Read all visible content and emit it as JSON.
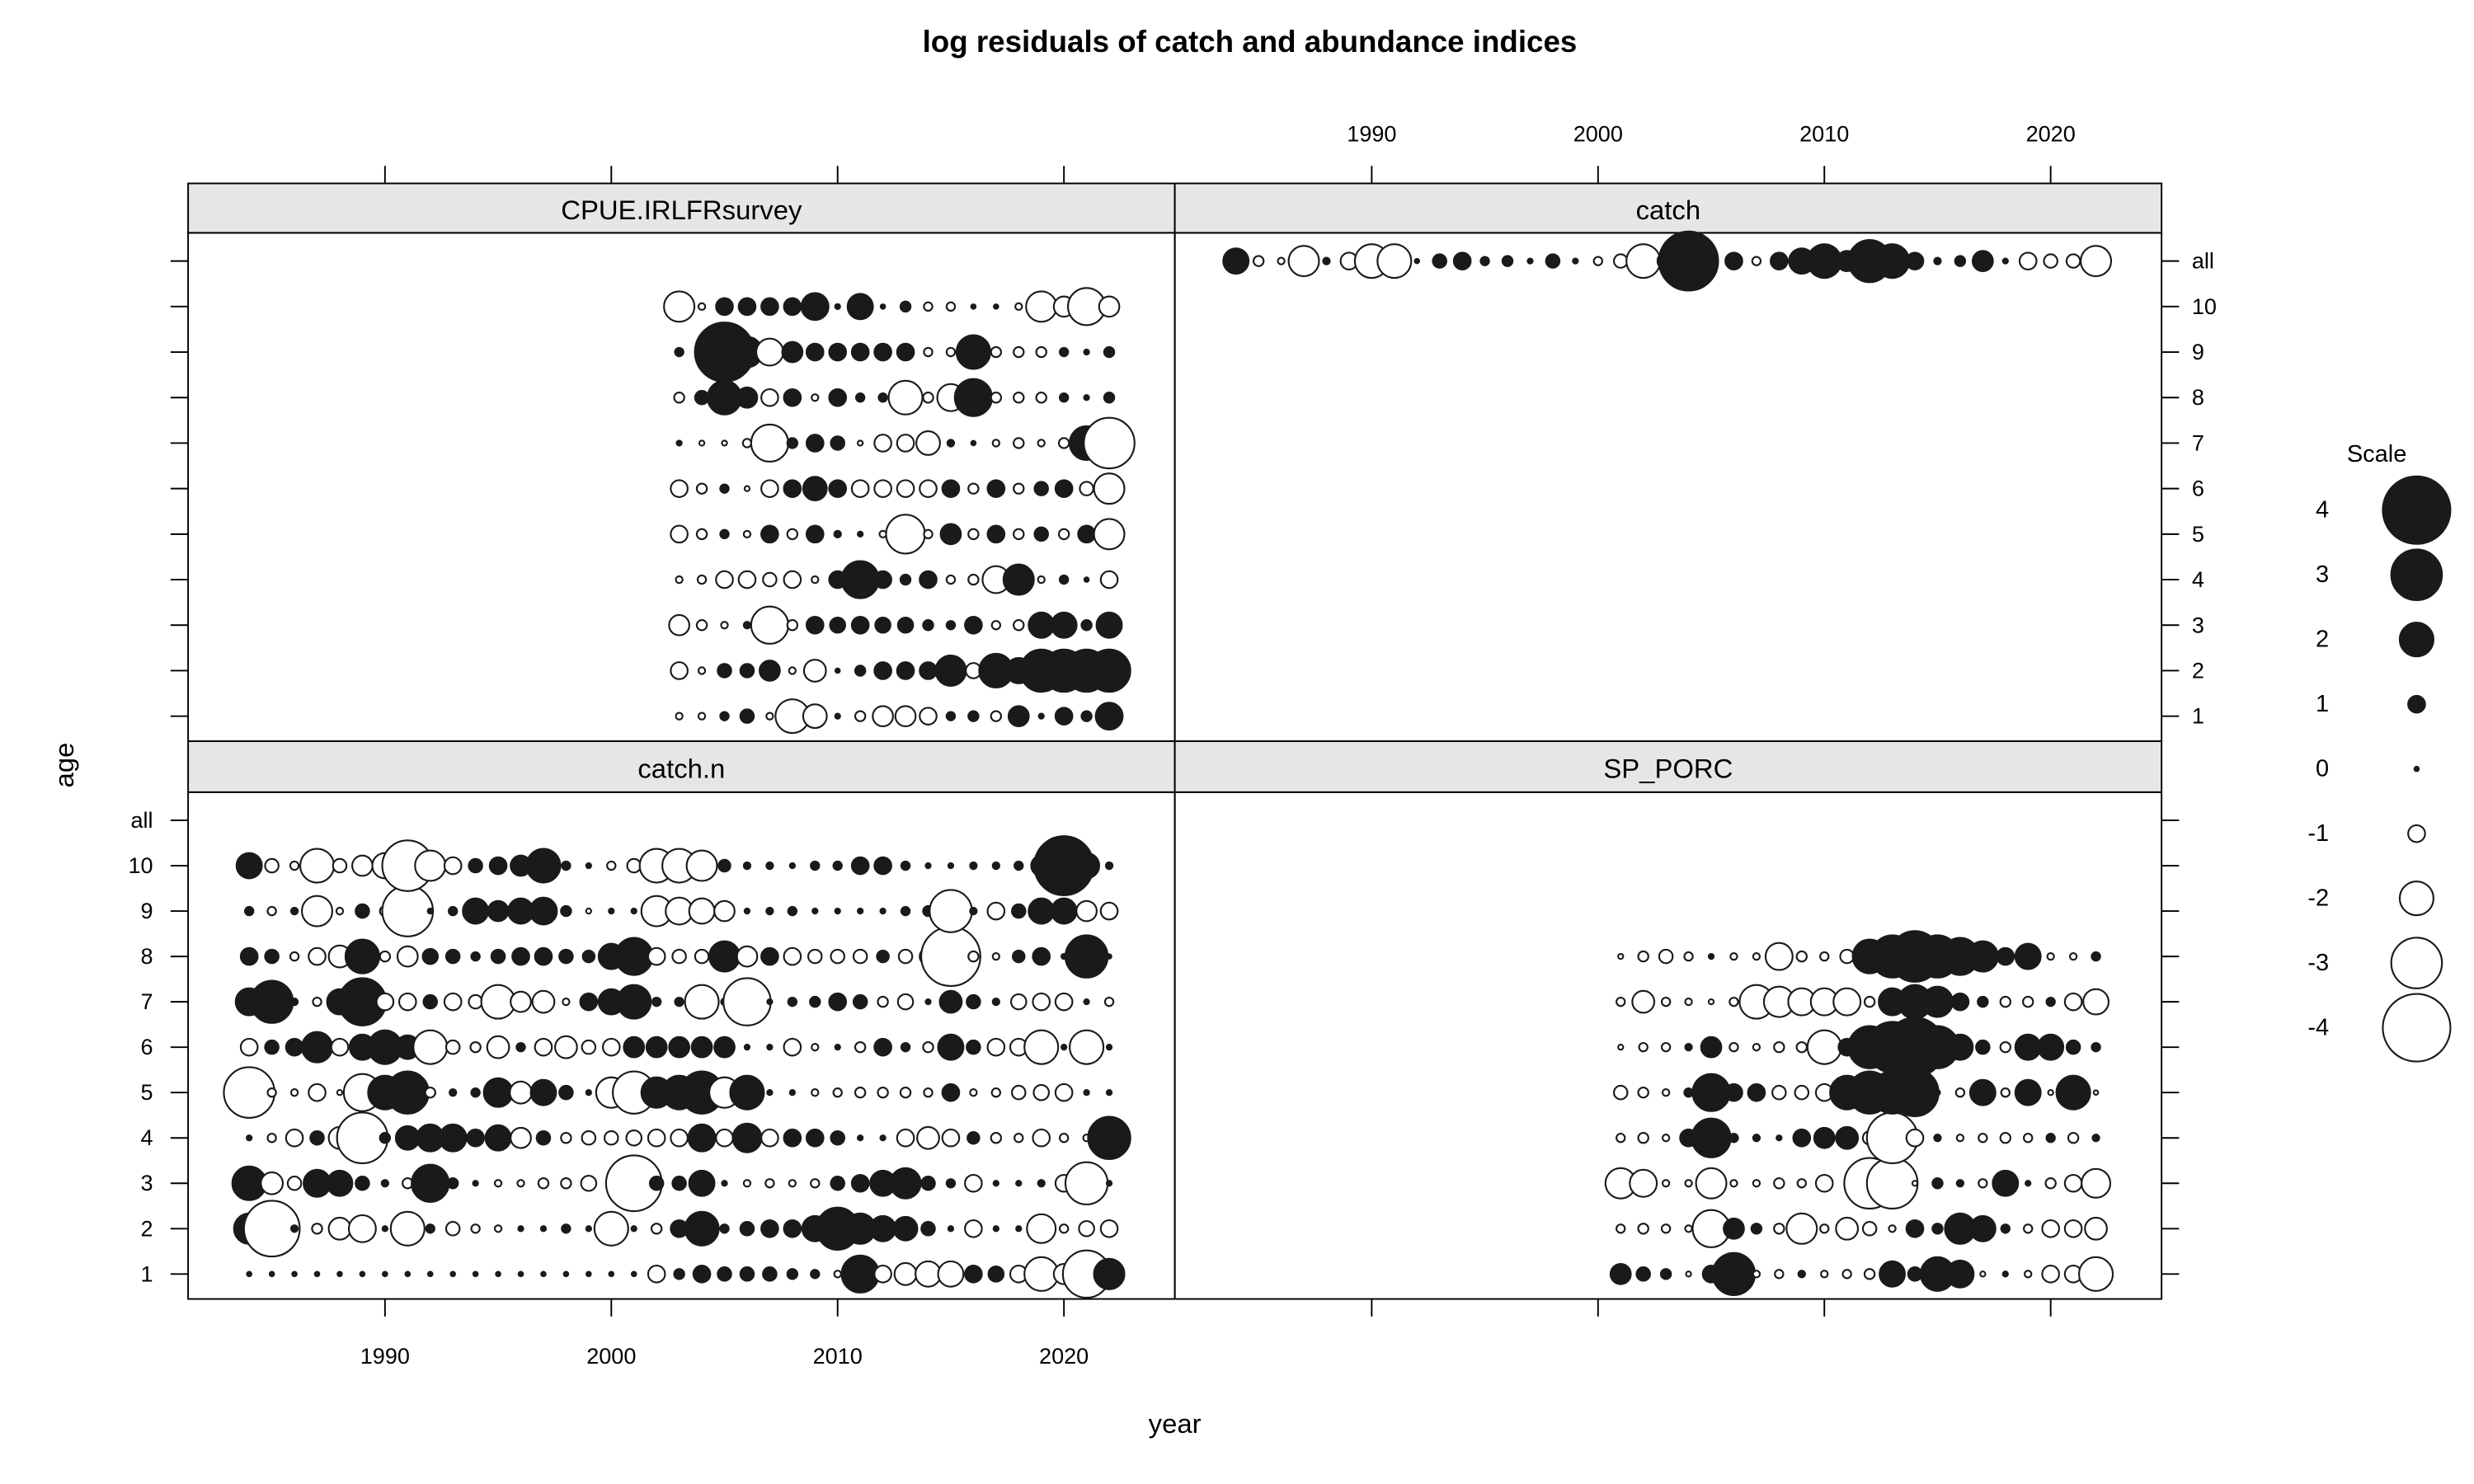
{
  "chart_data": {
    "type": "bubble",
    "title": "log residuals of catch and abundance indices",
    "xlabel": "year",
    "ylabel": "age",
    "xlim": [
      1981.3,
      2024.9
    ],
    "xticks": [
      1990,
      2000,
      2010,
      2020
    ],
    "ylim": [
      0.45,
      11.62
    ],
    "yticks": [
      1,
      2,
      3,
      4,
      5,
      6,
      7,
      8,
      9,
      10,
      {
        "value": 11,
        "label": "all"
      }
    ],
    "positive_color": "#1a1a1a",
    "negative_color": "#ffffff",
    "legend": {
      "title": "Scale",
      "values": [
        4,
        3,
        2,
        1,
        0,
        -1,
        -2,
        -3,
        -4
      ]
    },
    "panels": [
      {
        "name": "CPUE.IRLFRsurvey",
        "years": [
          2003,
          2004,
          2005,
          2006,
          2007,
          2008,
          2009,
          2010,
          2011,
          2012,
          2013,
          2014,
          2015,
          2016,
          2017,
          2018,
          2019,
          2020,
          2021,
          2022
        ],
        "ages": [
          1,
          2,
          3,
          4,
          5,
          6,
          7,
          8,
          9,
          10
        ],
        "values": [
          [
            -0.4,
            -0.4,
            0.5,
            0.8,
            -0.4,
            -2,
            -1.4,
            0.3,
            -0.6,
            -1.2,
            -1.2,
            -1,
            0.5,
            0.6,
            -0.6,
            1.2,
            0.3,
            1,
            0.6,
            1.6
          ],
          [
            -1,
            -0.4,
            0.8,
            0.8,
            1.2,
            -0.4,
            -1.3,
            0.2,
            0.6,
            1,
            1,
            1,
            1.8,
            -0.9,
            2,
            1.5,
            2.5,
            2.5,
            2.5,
            2.5
          ],
          [
            -1.2,
            -0.6,
            -0.4,
            0.4,
            -2.2,
            -0.6,
            1,
            0.9,
            1,
            0.9,
            0.9,
            0.6,
            0.5,
            1,
            -0.5,
            -0.6,
            1.5,
            1.5,
            0.6,
            1.5
          ],
          [
            -0.4,
            -0.5,
            -1,
            -1,
            -0.8,
            -1,
            -0.4,
            1,
            2.2,
            1,
            0.6,
            1,
            -0.5,
            -0.6,
            -1.6,
            1.8,
            -0.4,
            0.5,
            0.2,
            -1
          ],
          [
            -1,
            -0.6,
            0.5,
            -0.4,
            1,
            -0.6,
            1,
            0.4,
            0.3,
            -0.4,
            -2.3,
            -0.5,
            1.2,
            -0.6,
            1,
            -0.6,
            0.8,
            -0.6,
            1,
            -1.8
          ],
          [
            -1,
            -0.6,
            0.5,
            -0.3,
            -1,
            1,
            1.4,
            1,
            -1,
            -1,
            -1,
            -1,
            1,
            -0.6,
            1,
            -0.6,
            0.8,
            1,
            -0.8,
            -1.8
          ],
          [
            0.3,
            -0.3,
            -0.3,
            -0.5,
            -2.2,
            0.6,
            1,
            0.8,
            -0.3,
            -1,
            -1,
            -1.4,
            0.4,
            0.2,
            -0.4,
            -0.6,
            -0.4,
            -0.6,
            2,
            -3
          ],
          [
            -0.6,
            0.8,
            2,
            1.2,
            -1,
            1,
            -0.4,
            1,
            0.5,
            0.5,
            -2,
            -0.6,
            -1.6,
            2.2,
            -0.6,
            -0.6,
            -0.6,
            0.5,
            0.3,
            0.6
          ],
          [
            0.5,
            0.3,
            3.5,
            1.8,
            -1.6,
            1.2,
            1,
            1,
            1,
            1,
            1,
            -0.5,
            -0.5,
            2,
            -0.6,
            -0.6,
            -0.6,
            0.5,
            0.3,
            0.6
          ],
          [
            -1.8,
            -0.4,
            1,
            1,
            1,
            1,
            1.6,
            0.3,
            1.5,
            0.2,
            0.6,
            -0.5,
            -0.5,
            0.2,
            0.2,
            -0.4,
            -1.8,
            -1.2,
            -2.2,
            -1.2
          ]
        ]
      },
      {
        "name": "catch",
        "years": [
          1984,
          1985,
          1986,
          1987,
          1988,
          1989,
          1990,
          1991,
          1992,
          1993,
          1994,
          1995,
          1996,
          1997,
          1998,
          1999,
          2000,
          2001,
          2002,
          2003,
          2004,
          2005,
          2006,
          2007,
          2008,
          2009,
          2010,
          2011,
          2012,
          2013,
          2014,
          2015,
          2016,
          2017,
          2018,
          2019,
          2020,
          2021,
          2022
        ],
        "ages": [
          11
        ],
        "values": [
          [
            1.5,
            -0.6,
            -0.4,
            -1.8,
            0.4,
            -1,
            -2,
            -2,
            0.2,
            0.8,
            1,
            0.5,
            0.6,
            0.3,
            0.8,
            0.3,
            -0.5,
            -0.8,
            -2,
            -1,
            3.5,
            0.3,
            1,
            -0.5,
            1,
            1.5,
            2,
            1.2,
            2.5,
            2,
            1,
            0.4,
            0.6,
            1.2,
            0.3,
            -1,
            -0.8,
            -0.8,
            -1.8
          ]
        ]
      },
      {
        "name": "catch.n",
        "years": [
          1984,
          1985,
          1986,
          1987,
          1988,
          1989,
          1990,
          1991,
          1992,
          1993,
          1994,
          1995,
          1996,
          1997,
          1998,
          1999,
          2000,
          2001,
          2002,
          2003,
          2004,
          2005,
          2006,
          2007,
          2008,
          2009,
          2010,
          2011,
          2012,
          2013,
          2014,
          2015,
          2016,
          2017,
          2018,
          2019,
          2020,
          2021,
          2022
        ],
        "ages": [
          1,
          2,
          3,
          4,
          5,
          6,
          7,
          8,
          9,
          10
        ],
        "values": [
          [
            0.2,
            0.2,
            0.2,
            0.2,
            0.2,
            0.2,
            0.2,
            0.2,
            0.2,
            0.2,
            0.2,
            0.2,
            0.2,
            0.2,
            0.2,
            0.2,
            0.2,
            0.2,
            -1,
            0.6,
            1,
            0.8,
            0.8,
            0.8,
            0.6,
            0.5,
            -0.4,
            2.2,
            -1,
            -1.3,
            -1.5,
            -1.5,
            1,
            0.9,
            -1,
            -2,
            -1.2,
            -2.8,
            1.8
          ],
          [
            1.8,
            -3.3,
            0.4,
            -0.6,
            -1.3,
            -1.6,
            0.3,
            -2,
            0.5,
            -0.8,
            -0.5,
            -0.4,
            0.3,
            0.3,
            0.5,
            0.3,
            -2,
            0.3,
            -0.6,
            1,
            2,
            0.5,
            0.8,
            1,
            1,
            1.5,
            2.5,
            1.8,
            1.5,
            1.4,
            0.8,
            0.3,
            -1,
            0.3,
            0.3,
            -1.7,
            -0.5,
            -0.9,
            -1
          ],
          [
            2,
            -1.3,
            -0.8,
            1.6,
            1.5,
            0.8,
            0.4,
            -0.6,
            2.2,
            0.6,
            0.3,
            -0.4,
            -0.4,
            -0.6,
            -0.6,
            -0.9,
            0.3,
            -3.3,
            0.8,
            0.8,
            1.5,
            0.3,
            -0.4,
            -0.5,
            -0.4,
            -0.5,
            0.8,
            1,
            1.5,
            1.8,
            0.8,
            0.5,
            -1,
            0.3,
            0.3,
            0.4,
            -1,
            -2.5,
            0.3
          ],
          [
            0.3,
            -0.5,
            -1,
            0.8,
            -1.3,
            -3,
            0.6,
            1.4,
            1.6,
            1.6,
            1,
            1.5,
            -1.2,
            0.8,
            -0.6,
            -0.8,
            -0.8,
            -0.9,
            -1,
            -1,
            1.6,
            -1,
            1.7,
            -1,
            1,
            1,
            0.8,
            0.3,
            0.3,
            -1,
            -1.3,
            -1,
            0.7,
            -0.6,
            -0.5,
            -1,
            -0.5,
            -0.4,
            2.5
          ],
          [
            -3,
            -0.5,
            -0.4,
            -1,
            -0.3,
            -2.2,
            2,
            2.5,
            -0.6,
            0.4,
            0.5,
            1.7,
            -1.3,
            1.5,
            0.8,
            0.3,
            -1.8,
            -2.5,
            1.8,
            2,
            2.5,
            -1.8,
            2,
            0.3,
            0.3,
            -0.4,
            -0.5,
            -0.6,
            -0.6,
            -0.6,
            -0.5,
            1,
            -0.4,
            -0.5,
            -0.8,
            -0.9,
            -1,
            0.3,
            0.3
          ],
          [
            -1,
            0.8,
            1,
            1.8,
            -1,
            1.5,
            2,
            1.4,
            -2,
            -0.8,
            -0.6,
            -1.3,
            0.5,
            -1,
            -1.3,
            -0.8,
            -1,
            1.2,
            1.2,
            1.2,
            1.2,
            1.2,
            0.3,
            0.3,
            -1,
            -0.4,
            0.3,
            -0.6,
            1,
            0.5,
            -0.6,
            1.5,
            0.8,
            -1,
            -1,
            -2,
            0.3,
            -2,
            0.3
          ],
          [
            1.6,
            2.5,
            0.4,
            -0.5,
            1.5,
            2.8,
            -1,
            -1,
            0.8,
            -1,
            -0.8,
            -2,
            -1.2,
            -1.3,
            -0.4,
            1,
            1.5,
            2,
            0.5,
            0.5,
            -2,
            0.4,
            -2.8,
            0.3,
            0.5,
            0.6,
            1,
            0.8,
            -0.6,
            -0.9,
            0.3,
            1.3,
            0.8,
            0.4,
            -0.9,
            -1,
            -1,
            0.3,
            -0.5
          ],
          [
            1,
            0.8,
            -0.5,
            -1,
            -1.3,
            2,
            -0.6,
            -1.2,
            0.9,
            0.8,
            0.5,
            0.8,
            1,
            1,
            0.8,
            0.7,
            1.5,
            2.2,
            -1,
            -0.8,
            -0.8,
            1.8,
            -1.2,
            1,
            -1,
            -0.8,
            -0.8,
            -0.8,
            0.7,
            -0.8,
            -1,
            -3.5,
            -0.6,
            -0.4,
            0.7,
            1,
            0.3,
            2.5,
            0
          ],
          [
            0.5,
            -0.5,
            0.4,
            -1.8,
            -0.4,
            0.8,
            -0.6,
            -3,
            0.3,
            0.5,
            1.5,
            1.2,
            1.5,
            1.6,
            0.6,
            -0.3,
            0.3,
            0.3,
            -1.8,
            -1.6,
            -1.5,
            -1.2,
            0.3,
            0.4,
            0.5,
            0.3,
            0.3,
            0.3,
            0.3,
            0.5,
            0.6,
            -2.5,
            0.4,
            -1,
            0.8,
            1.5,
            1.5,
            -1.2,
            -1
          ],
          [
            1.5,
            -0.8,
            -0.5,
            -2,
            -0.8,
            -1.2,
            -1.5,
            -3,
            -1.8,
            -1,
            0.8,
            1,
            1.2,
            2,
            0.5,
            0.3,
            -0.5,
            -0.8,
            -2,
            -2,
            -1.8,
            0.7,
            0.4,
            0.4,
            0.3,
            0.5,
            0.5,
            1,
            1,
            0.5,
            0.3,
            0.3,
            0.4,
            0.4,
            0.5,
            1.2,
            3.5,
            1.5,
            0.4
          ]
        ]
      },
      {
        "name": "SP_PORC",
        "years": [
          2001,
          2002,
          2003,
          2004,
          2005,
          2006,
          2007,
          2008,
          2009,
          2010,
          2011,
          2012,
          2013,
          2014,
          2015,
          2016,
          2017,
          2018,
          2019,
          2020,
          2021,
          2022
        ],
        "ages": [
          1,
          2,
          3,
          4,
          5,
          6,
          7,
          8
        ],
        "values": [
          [
            1.2,
            0.8,
            0.6,
            -0.3,
            1,
            2.5,
            -0.4,
            -0.5,
            0.4,
            -0.4,
            -0.5,
            -0.6,
            1.5,
            0.8,
            2,
            1.6,
            -0.3,
            0.3,
            -0.4,
            -1,
            -1,
            -2
          ],
          [
            -0.5,
            -0.6,
            -0.5,
            -0.4,
            -2.2,
            1.2,
            0.6,
            -0.6,
            -1.8,
            -0.5,
            -1.3,
            -0.8,
            -0.4,
            1,
            0.6,
            1.8,
            1.5,
            0.5,
            -0.5,
            -1,
            -1,
            -1.3
          ],
          [
            -1.8,
            -1.6,
            -0.4,
            -0.4,
            -1.8,
            -0.4,
            -0.4,
            -0.6,
            -0.5,
            -1,
            -0.3,
            -3,
            -3,
            -0.3,
            0.6,
            0.4,
            -0.5,
            1.5,
            0.3,
            -0.6,
            -1,
            -1.7
          ],
          [
            -0.5,
            -0.6,
            -0.4,
            1,
            2.3,
            0.5,
            0.4,
            0.3,
            1,
            1.2,
            1.3,
            -0.8,
            -3,
            -1,
            0.4,
            -0.4,
            -0.5,
            -0.6,
            -0.5,
            0.5,
            -0.6,
            0.4
          ],
          [
            -0.8,
            -0.6,
            -0.4,
            0.5,
            2.2,
            1,
            1,
            -0.8,
            -0.8,
            -1,
            2,
            2.5,
            2.5,
            2.8,
            0.3,
            -0.5,
            1.5,
            -0.5,
            1.5,
            -0.3,
            2,
            -0.2
          ],
          [
            -0.3,
            -0.5,
            -0.5,
            0.4,
            1.2,
            -0.5,
            -0.4,
            -0.6,
            -0.6,
            -2,
            1,
            2.5,
            3,
            3.5,
            2.5,
            1.5,
            0.8,
            -0.6,
            1.5,
            1.5,
            0.8,
            0.5
          ],
          [
            -0.5,
            -1.3,
            -0.5,
            -0.4,
            -0.3,
            -0.5,
            -2,
            -1.8,
            -1.6,
            -1.6,
            -1.6,
            -0.6,
            1.6,
            2,
            1.8,
            1,
            0.6,
            -0.6,
            -0.6,
            0.5,
            -1,
            -1.5
          ],
          [
            -0.3,
            -0.6,
            -0.8,
            -0.5,
            0.3,
            -0.4,
            -0.4,
            -1.6,
            -0.6,
            -0.5,
            -0.8,
            2,
            2.5,
            3,
            2.5,
            2.2,
            1.8,
            1,
            1.5,
            -0.4,
            -0.4,
            0.5
          ]
        ]
      }
    ]
  }
}
